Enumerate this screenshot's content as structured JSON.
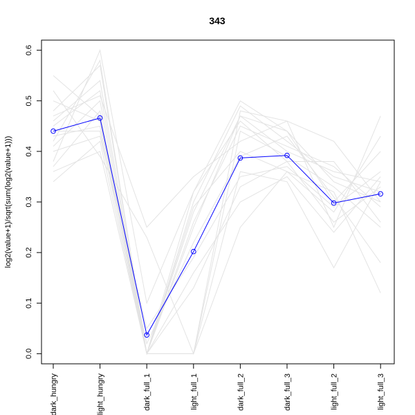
{
  "chart_data": {
    "type": "line",
    "title": "343",
    "xlabel": "",
    "ylabel": "log2(value+1)/sqrt(sum(log2(value+1)))",
    "categories": [
      "dark_hungry",
      "light_hungry",
      "dark_full_1",
      "light_full_1",
      "dark_full_2",
      "dark_full_3",
      "light_full_2",
      "light_full_3"
    ],
    "ylim": [
      -0.02,
      0.62
    ],
    "yticks": [
      "0.0",
      "0.1",
      "0.2",
      "0.3",
      "0.4",
      "0.5",
      "0.6"
    ],
    "grid": false,
    "legend": "none",
    "highlight": {
      "color": "#0000ff",
      "marker": "open-circle",
      "values": [
        0.44,
        0.466,
        0.037,
        0.202,
        0.387,
        0.392,
        0.298,
        0.316
      ]
    },
    "background": {
      "color": "#e3e3e3",
      "series": [
        [
          0.34,
          0.42,
          0.0,
          0.0,
          0.48,
          0.46,
          0.25,
          0.47
        ],
        [
          0.38,
          0.6,
          0.1,
          0.32,
          0.5,
          0.44,
          0.3,
          0.4
        ],
        [
          0.42,
          0.58,
          0.0,
          0.25,
          0.47,
          0.4,
          0.36,
          0.34
        ],
        [
          0.47,
          0.51,
          0.25,
          0.35,
          0.42,
          0.46,
          0.42,
          0.3
        ],
        [
          0.55,
          0.47,
          0.0,
          0.32,
          0.46,
          0.38,
          0.38,
          0.26
        ],
        [
          0.44,
          0.44,
          0.0,
          0.29,
          0.4,
          0.36,
          0.28,
          0.43
        ],
        [
          0.37,
          0.48,
          0.0,
          0.0,
          0.25,
          0.36,
          0.32,
          0.12
        ],
        [
          0.52,
          0.39,
          0.23,
          0.0,
          0.36,
          0.34,
          0.17,
          0.34
        ],
        [
          0.48,
          0.57,
          0.0,
          0.3,
          0.49,
          0.42,
          0.35,
          0.32
        ],
        [
          0.45,
          0.52,
          0.0,
          0.0,
          0.44,
          0.39,
          0.33,
          0.25
        ],
        [
          0.4,
          0.43,
          0.05,
          0.19,
          0.35,
          0.37,
          0.29,
          0.36
        ],
        [
          0.5,
          0.46,
          0.0,
          0.26,
          0.45,
          0.41,
          0.37,
          0.29
        ],
        [
          0.36,
          0.4,
          0.0,
          0.13,
          0.33,
          0.38,
          0.26,
          0.33
        ],
        [
          0.43,
          0.45,
          0.02,
          0.22,
          0.39,
          0.43,
          0.31,
          0.18
        ],
        [
          0.41,
          0.5,
          0.0,
          0.16,
          0.3,
          0.35,
          0.24,
          0.35
        ],
        [
          0.46,
          0.54,
          0.0,
          0.28,
          0.47,
          0.44,
          0.34,
          0.3
        ]
      ]
    }
  }
}
